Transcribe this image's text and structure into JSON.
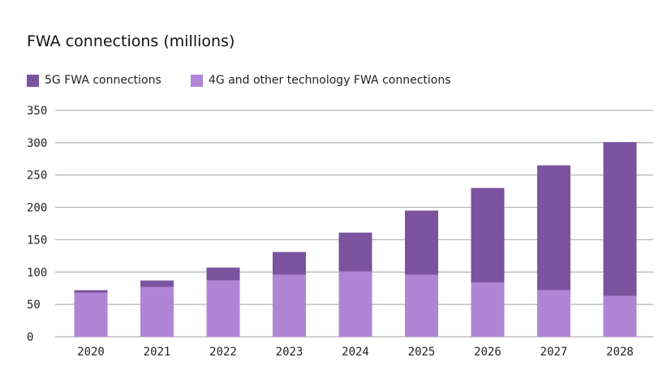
{
  "chart_data": {
    "type": "bar",
    "stacked": true,
    "title": "FWA connections (millions)",
    "xlabel": "",
    "ylabel": "",
    "ylim": [
      0,
      350
    ],
    "yticks": [
      0,
      50,
      100,
      150,
      200,
      250,
      300,
      350
    ],
    "grid": true,
    "legend_position": "top-left",
    "categories": [
      "2020",
      "2021",
      "2022",
      "2023",
      "2024",
      "2025",
      "2026",
      "2027",
      "2028"
    ],
    "series": [
      {
        "name": "4G and other technology FWA connections",
        "color": "#b185d6",
        "values": [
          68,
          77,
          87,
          96,
          101,
          96,
          84,
          72,
          63
        ]
      },
      {
        "name": "5G FWA connections",
        "color": "#7b539e",
        "values": [
          4,
          10,
          20,
          35,
          60,
          99,
          146,
          193,
          238
        ]
      }
    ],
    "legend_order": [
      1,
      0
    ]
  }
}
